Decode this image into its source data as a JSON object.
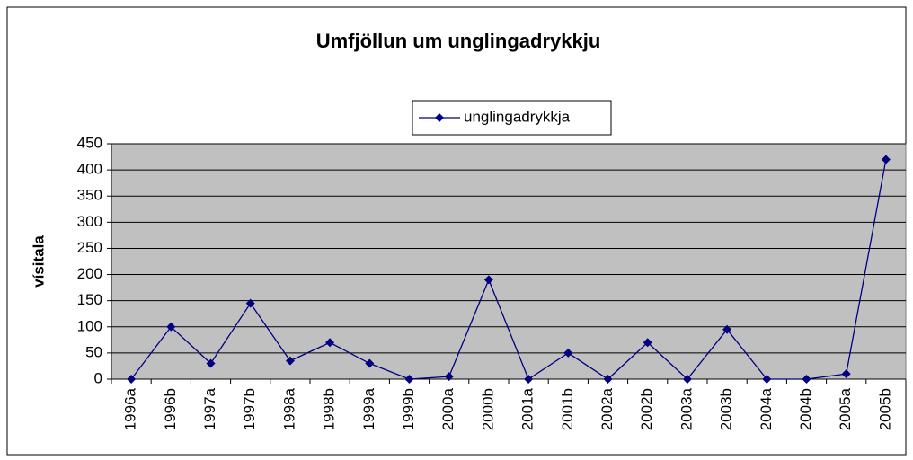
{
  "chart_data": {
    "type": "line",
    "title": "Umfjöllun um unglingadrykkju",
    "ylabel": "vísitala",
    "categories": [
      "1996a",
      "1996b",
      "1997a",
      "1997b",
      "1998a",
      "1998b",
      "1999a",
      "1999b",
      "2000a",
      "2000b",
      "2001a",
      "2001b",
      "2002a",
      "2002b",
      "2003a",
      "2003b",
      "2004a",
      "2004b",
      "2005a",
      "2005b"
    ],
    "series": [
      {
        "name": "unglingadrykkja",
        "color": "#000080",
        "values": [
          0,
          100,
          30,
          145,
          35,
          70,
          30,
          0,
          5,
          190,
          0,
          50,
          0,
          70,
          0,
          95,
          0,
          0,
          10,
          420
        ]
      }
    ],
    "ylim": [
      0,
      450
    ],
    "yticks": [
      0,
      50,
      100,
      150,
      200,
      250,
      300,
      350,
      400,
      450
    ],
    "grid": true,
    "legend": "top"
  }
}
